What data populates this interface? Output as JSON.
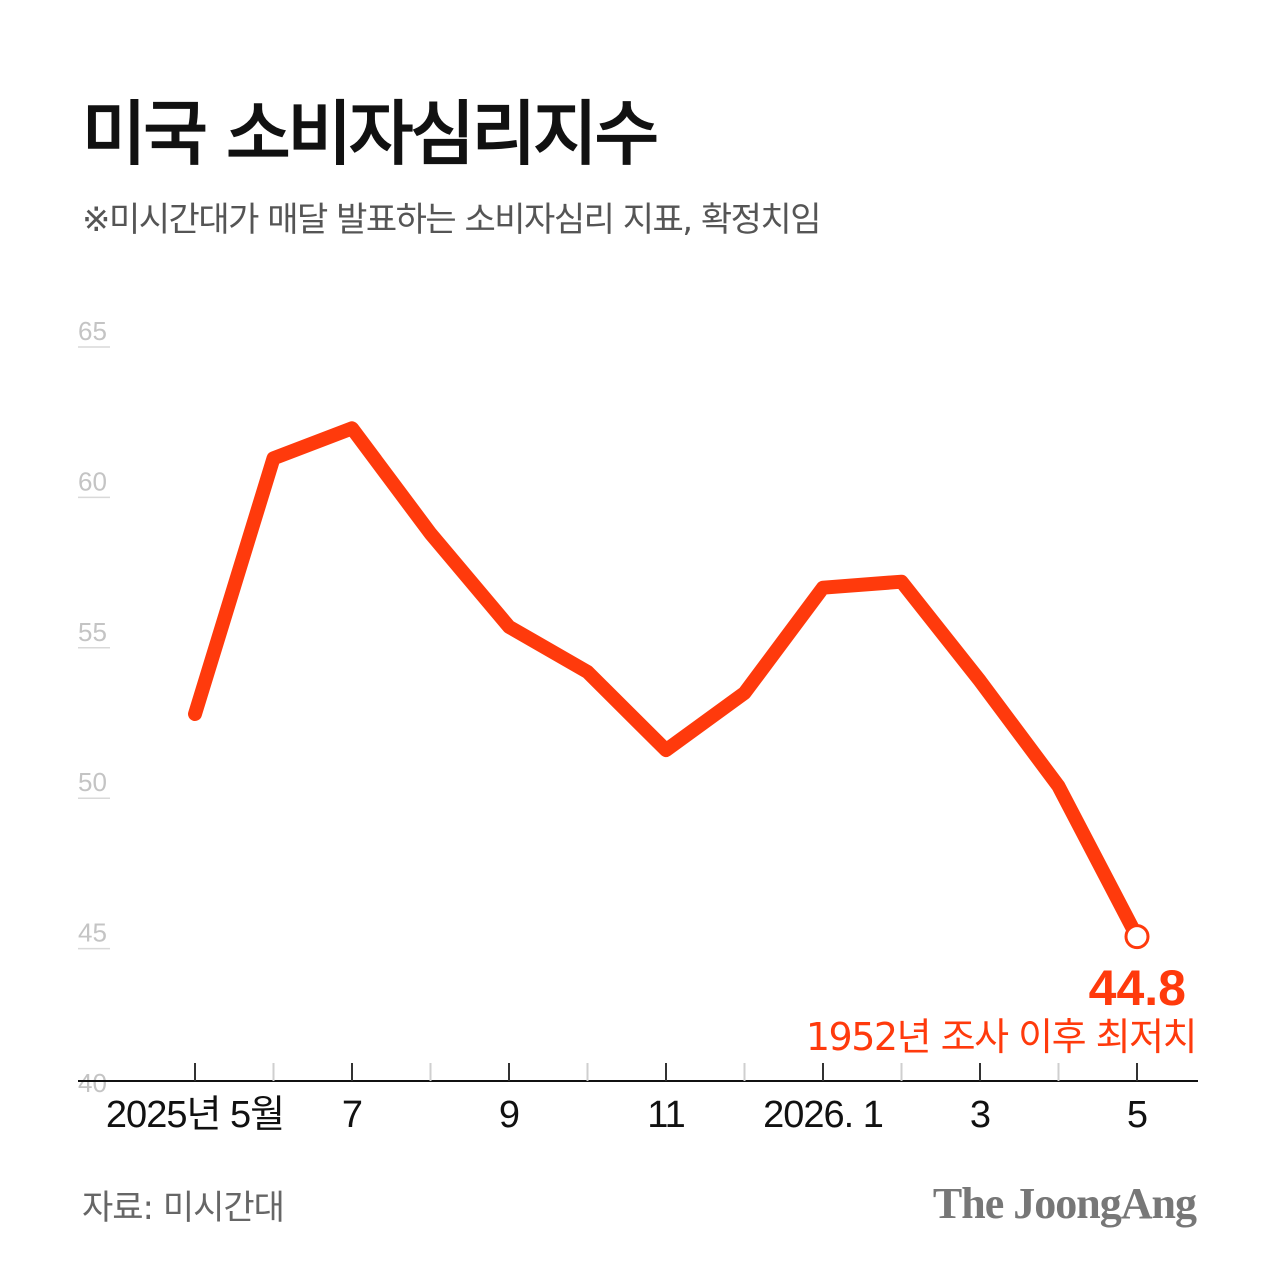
{
  "header": {
    "title": "미국 소비자심리지수",
    "subtitle": "※미시간대가 매달 발표하는 소비자심리 지표, 확정치임"
  },
  "footer": {
    "source": "자료: 미시간대",
    "brand": "The JoongAng"
  },
  "colors": {
    "line": "#ff3a0c",
    "grid": "#d9d9d9",
    "axis": "#111111"
  },
  "chart_data": {
    "type": "line",
    "title": "미국 소비자심리지수",
    "subtitle": "※미시간대가 매달 발표하는 소비자심리 지표, 확정치임",
    "x": [
      "2025-05",
      "2025-06",
      "2025-07",
      "2025-08",
      "2025-09",
      "2025-10",
      "2025-11",
      "2025-12",
      "2026-01",
      "2026-02",
      "2026-03",
      "2026-04",
      "2026-05"
    ],
    "x_tick_labels": [
      {
        "x": "2025-05",
        "label": "2025년 5월"
      },
      {
        "x": "2025-07",
        "label": "7"
      },
      {
        "x": "2025-09",
        "label": "9"
      },
      {
        "x": "2025-11",
        "label": "11"
      },
      {
        "x": "2026-01",
        "label": "2026. 1"
      },
      {
        "x": "2026-03",
        "label": "3"
      },
      {
        "x": "2026-05",
        "label": "5"
      }
    ],
    "series": [
      {
        "values": [
          52.2,
          60.7,
          61.7,
          58.2,
          55.1,
          53.6,
          51.0,
          52.9,
          56.4,
          56.6,
          53.3,
          49.8,
          44.8
        ]
      }
    ],
    "y_ticks": [
      40,
      45,
      50,
      55,
      60,
      65
    ],
    "ylim": [
      40,
      65
    ],
    "grid": false,
    "annotation": {
      "x": "2026-05",
      "value_label": "44.8",
      "note": "1952년 조사 이후 최저치"
    }
  }
}
